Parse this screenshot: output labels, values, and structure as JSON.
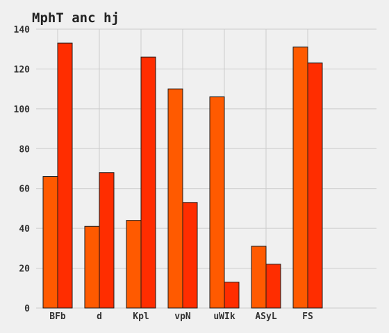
{
  "chart_data": {
    "type": "bar",
    "title": "MphT anc hj",
    "xlabel": "",
    "ylabel": "",
    "categories": [
      "BFb",
      "d",
      "Kpl",
      "vpN",
      "uWIk",
      "ASyL",
      "FS"
    ],
    "series": [
      {
        "values": [
          66,
          41,
          44,
          110,
          106,
          31,
          131
        ],
        "color": "#ff5a00"
      },
      {
        "values": [
          133,
          68,
          126,
          53,
          13,
          22,
          123
        ],
        "color": "#ff2d00"
      }
    ],
    "ylim": [
      0,
      140
    ],
    "yticks": [
      0,
      20,
      40,
      60,
      80,
      100,
      120,
      140
    ],
    "grid": true,
    "legend": "none",
    "background": "#f0f0f0"
  }
}
